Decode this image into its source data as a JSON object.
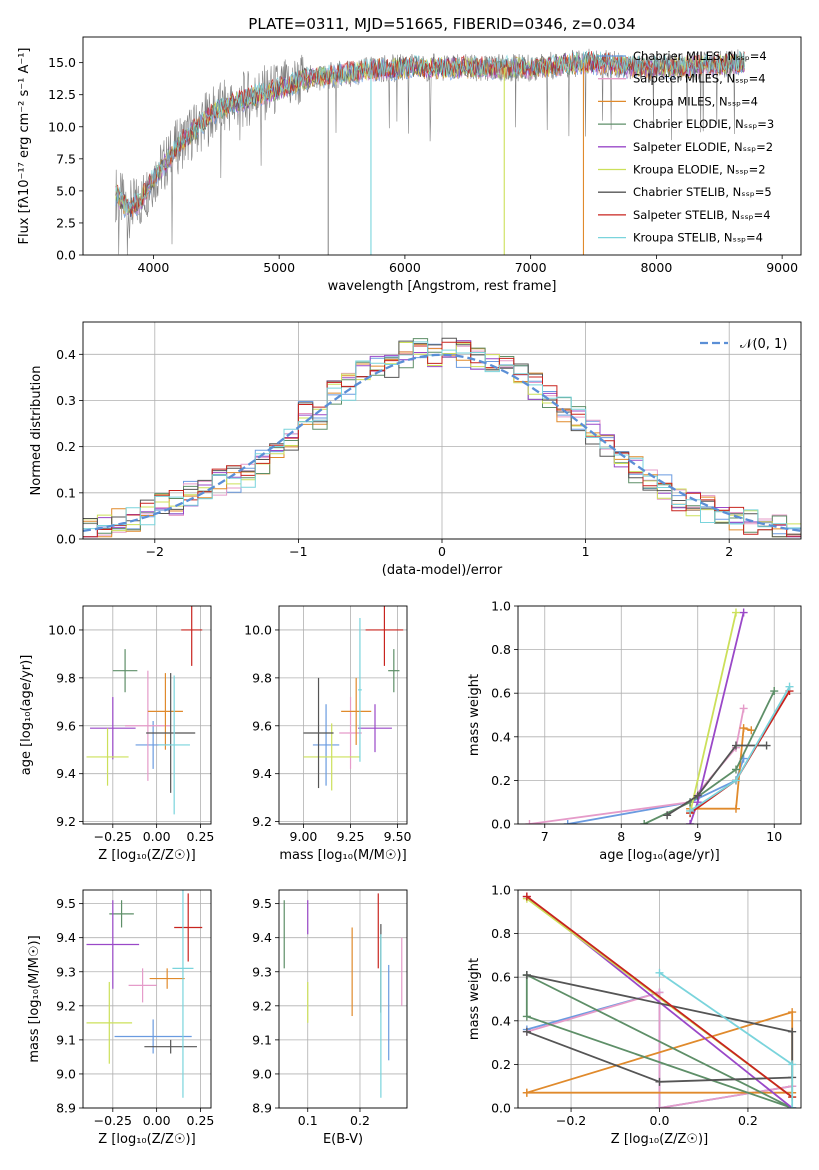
{
  "title": "PLATE=0311, MJD=51665, FIBERID=0346, z=0.034",
  "colors": {
    "series": [
      "#6a9be0",
      "#e59bc9",
      "#e08a2c",
      "#5e8f68",
      "#9a48c8",
      "#cce05a",
      "#555555",
      "#c8241f",
      "#7ad4dc"
    ],
    "spectrum_data": "#808080",
    "normal_curve": "#5b8fd6"
  },
  "chart_data": [
    {
      "type": "line",
      "panel": "spectrum",
      "xlabel": "wavelength [Angstrom, rest frame]",
      "ylabel": "Flux [fλ10⁻¹⁷ erg cm⁻² s⁻¹ A⁻¹]",
      "xlim": [
        3440,
        9150
      ],
      "ylim": [
        0,
        17
      ],
      "xticks": [
        "4000",
        "5000",
        "6000",
        "7000",
        "8000",
        "9000"
      ],
      "yticks": [
        "0.0",
        "2.5",
        "5.0",
        "7.5",
        "10.0",
        "12.5",
        "15.0"
      ],
      "legend": [
        "Chabrier MILES, Nₛₛₚ=4",
        "Salpeter MILES, Nₛₛₚ=4",
        "Kroupa MILES, Nₛₛₚ=4",
        "Chabrier ELODIE, Nₛₛₚ=3",
        "Salpeter ELODIE, Nₛₛₚ=2",
        "Kroupa ELODIE, Nₛₛₚ=2",
        "Chabrier STELIB, Nₛₛₚ=5",
        "Salpeter STELIB, Nₛₛₚ=4",
        "Kroupa STELIB, Nₛₛₚ=4"
      ],
      "legend_location": "right",
      "continuum": [
        [
          3700,
          4.8
        ],
        [
          3800,
          3.5
        ],
        [
          3900,
          4.2
        ],
        [
          4000,
          6.0
        ],
        [
          4100,
          7.2
        ],
        [
          4200,
          8.6
        ],
        [
          4300,
          9.5
        ],
        [
          4400,
          10.4
        ],
        [
          4500,
          11.2
        ],
        [
          4600,
          11.6
        ],
        [
          4800,
          12.4
        ],
        [
          5000,
          12.9
        ],
        [
          5200,
          13.7
        ],
        [
          5500,
          14.1
        ],
        [
          5800,
          14.5
        ],
        [
          6000,
          14.6
        ],
        [
          6300,
          14.6
        ],
        [
          6600,
          14.6
        ],
        [
          7000,
          14.6
        ],
        [
          7300,
          14.9
        ],
        [
          7500,
          15.0
        ],
        [
          7800,
          14.7
        ],
        [
          8000,
          14.6
        ],
        [
          8300,
          14.7
        ],
        [
          8600,
          14.9
        ],
        [
          8700,
          15.0
        ]
      ],
      "model_dropouts": [
        [
          5730,
          0,
          "#7ad4dc"
        ],
        [
          6790,
          0,
          "#cce05a"
        ],
        [
          7420,
          0,
          "#e08a2c"
        ]
      ]
    },
    {
      "type": "line",
      "panel": "residual-histogram",
      "xlabel": "(data-model)/error",
      "ylabel": "Normed distribution",
      "xlim": [
        -2.5,
        2.5
      ],
      "ylim": [
        0,
        0.47
      ],
      "xticks": [
        "−2",
        "−1",
        "0",
        "1",
        "2"
      ],
      "yticks": [
        "0.0",
        "0.1",
        "0.2",
        "0.3",
        "0.4"
      ],
      "legend": [
        "𝒩(0, 1)"
      ],
      "legend_location": "top-right",
      "bins_center": [
        -2.45,
        -2.35,
        -2.25,
        -2.15,
        -2.05,
        -1.95,
        -1.85,
        -1.75,
        -1.65,
        -1.55,
        -1.45,
        -1.35,
        -1.25,
        -1.15,
        -1.05,
        -0.95,
        -0.85,
        -0.75,
        -0.65,
        -0.55,
        -0.45,
        -0.35,
        -0.25,
        -0.15,
        -0.05,
        0.05,
        0.15,
        0.25,
        0.35,
        0.45,
        0.55,
        0.65,
        0.75,
        0.85,
        0.95,
        1.05,
        1.15,
        1.25,
        1.35,
        1.45,
        1.55,
        1.65,
        1.75,
        1.85,
        1.95,
        2.05,
        2.15,
        2.25,
        2.35,
        2.45
      ],
      "reference_histogram": [
        0.02,
        0.03,
        0.04,
        0.045,
        0.055,
        0.07,
        0.08,
        0.095,
        0.11,
        0.125,
        0.13,
        0.14,
        0.17,
        0.19,
        0.22,
        0.27,
        0.26,
        0.32,
        0.33,
        0.36,
        0.37,
        0.38,
        0.4,
        0.41,
        0.4,
        0.41,
        0.4,
        0.39,
        0.38,
        0.37,
        0.35,
        0.33,
        0.31,
        0.28,
        0.26,
        0.23,
        0.2,
        0.17,
        0.15,
        0.13,
        0.11,
        0.09,
        0.08,
        0.065,
        0.055,
        0.045,
        0.04,
        0.03,
        0.025,
        0.02
      ]
    },
    {
      "type": "scatter",
      "panel": "age-vs-metallicity",
      "xlabel": "Z [log₁₀(Z/Z☉)]",
      "ylabel": "age  [log₁₀(age/yr)]",
      "xlim": [
        -0.42,
        0.31
      ],
      "ylim": [
        9.19,
        10.1
      ],
      "xticks": [
        "−0.25",
        "0.00",
        "0.25"
      ],
      "yticks": [
        "9.2",
        "9.4",
        "9.6",
        "9.8",
        "10.0"
      ],
      "points": [
        {
          "x": -0.02,
          "y": 9.52,
          "xerr": 0.1,
          "yerr": 0.1,
          "series": 0
        },
        {
          "x": -0.05,
          "y": 9.6,
          "xerr": 0.13,
          "yerr": 0.23,
          "series": 1
        },
        {
          "x": 0.05,
          "y": 9.66,
          "xerr": 0.1,
          "yerr": 0.16,
          "series": 2
        },
        {
          "x": -0.18,
          "y": 9.83,
          "xerr": 0.07,
          "yerr": 0.09,
          "series": 3
        },
        {
          "x": -0.25,
          "y": 9.59,
          "xerr": 0.13,
          "yerr": 0.13,
          "series": 4
        },
        {
          "x": -0.28,
          "y": 9.47,
          "xerr": 0.12,
          "yerr": 0.12,
          "series": 5
        },
        {
          "x": 0.08,
          "y": 9.57,
          "xerr": 0.14,
          "yerr": 0.25,
          "series": 6
        },
        {
          "x": 0.2,
          "y": 10.0,
          "xerr": 0.06,
          "yerr": 0.15,
          "series": 7
        },
        {
          "x": 0.1,
          "y": 9.52,
          "xerr": 0.09,
          "yerr": 0.29,
          "series": 8
        }
      ]
    },
    {
      "type": "scatter",
      "panel": "age-vs-mass",
      "xlabel": "mass [log₁₀(M/M☉)]",
      "ylabel": "",
      "xlim": [
        8.87,
        9.55
      ],
      "ylim": [
        9.19,
        10.1
      ],
      "xticks": [
        "9.00",
        "9.25",
        "9.50"
      ],
      "yticks": [
        "9.2",
        "9.4",
        "9.6",
        "9.8",
        "10.0"
      ],
      "points": [
        {
          "x": 9.12,
          "y": 9.52,
          "xerr": 0.07,
          "yerr": 0.17,
          "series": 0
        },
        {
          "x": 9.25,
          "y": 9.57,
          "xerr": 0.06,
          "yerr": 0.15,
          "series": 1
        },
        {
          "x": 9.28,
          "y": 9.66,
          "xerr": 0.08,
          "yerr": 0.14,
          "series": 2
        },
        {
          "x": 9.48,
          "y": 9.83,
          "xerr": 0.03,
          "yerr": 0.09,
          "series": 3
        },
        {
          "x": 9.38,
          "y": 9.59,
          "xerr": 0.09,
          "yerr": 0.1,
          "series": 4
        },
        {
          "x": 9.15,
          "y": 9.47,
          "xerr": 0.15,
          "yerr": 0.14,
          "series": 5
        },
        {
          "x": 9.08,
          "y": 9.57,
          "xerr": 0.08,
          "yerr": 0.23,
          "series": 6
        },
        {
          "x": 9.43,
          "y": 10.0,
          "xerr": 0.1,
          "yerr": 0.15,
          "series": 7
        },
        {
          "x": 9.3,
          "y": 9.75,
          "xerr": 0.01,
          "yerr": 0.3,
          "series": 8
        }
      ]
    },
    {
      "type": "line",
      "panel": "mass-weight-vs-age",
      "xlabel": "age  [log₁₀(age/yr)]",
      "ylabel": "mass weight",
      "xlim": [
        6.65,
        10.35
      ],
      "ylim": [
        0,
        1
      ],
      "xticks": [
        "7",
        "8",
        "9",
        "10"
      ],
      "yticks": [
        "0.0",
        "0.2",
        "0.4",
        "0.6",
        "0.8",
        "1.0"
      ],
      "series": [
        {
          "series": 0,
          "points": [
            [
              7.3,
              0.0
            ],
            [
              8.9,
              0.1
            ],
            [
              9.5,
              0.2
            ],
            [
              9.6,
              0.3
            ]
          ]
        },
        {
          "series": 1,
          "points": [
            [
              6.8,
              0.0
            ],
            [
              8.9,
              0.1
            ],
            [
              9.5,
              0.35
            ],
            [
              9.6,
              0.53
            ]
          ]
        },
        {
          "series": 2,
          "points": [
            [
              8.9,
              0.07
            ],
            [
              9.5,
              0.07
            ],
            [
              9.6,
              0.44
            ],
            [
              9.7,
              0.43
            ]
          ]
        },
        {
          "series": 3,
          "points": [
            [
              8.3,
              0.0
            ],
            [
              8.9,
              0.1
            ],
            [
              9.5,
              0.25
            ],
            [
              10.0,
              0.61
            ]
          ]
        },
        {
          "series": 4,
          "points": [
            [
              8.9,
              0.0
            ],
            [
              9.0,
              0.1
            ],
            [
              9.6,
              0.97
            ]
          ]
        },
        {
          "series": 5,
          "points": [
            [
              8.9,
              0.05
            ],
            [
              9.5,
              0.97
            ]
          ]
        },
        {
          "series": 6,
          "points": [
            [
              8.6,
              0.04
            ],
            [
              9.0,
              0.13
            ],
            [
              9.5,
              0.36
            ],
            [
              9.9,
              0.36
            ]
          ]
        },
        {
          "series": 7,
          "points": [
            [
              8.9,
              0.05
            ],
            [
              9.5,
              0.2
            ],
            [
              10.2,
              0.61
            ]
          ]
        },
        {
          "series": 8,
          "points": [
            [
              8.9,
              0.06
            ],
            [
              9.5,
              0.2
            ],
            [
              10.2,
              0.63
            ]
          ]
        }
      ]
    },
    {
      "type": "scatter",
      "panel": "mass-vs-metallicity",
      "xlabel": "Z [log₁₀(Z/Z☉)]",
      "ylabel": "mass [log₁₀(M/M☉)]",
      "xlim": [
        -0.42,
        0.31
      ],
      "ylim": [
        8.9,
        9.54
      ],
      "xticks": [
        "−0.25",
        "0.00",
        "0.25"
      ],
      "yticks": [
        "8.9",
        "9.0",
        "9.1",
        "9.2",
        "9.3",
        "9.4",
        "9.5"
      ],
      "points": [
        {
          "x": -0.02,
          "y": 9.11,
          "xerr": 0.22,
          "yerr": 0.05,
          "series": 0
        },
        {
          "x": -0.08,
          "y": 9.26,
          "xerr": 0.08,
          "yerr": 0.05,
          "series": 1
        },
        {
          "x": 0.06,
          "y": 9.28,
          "xerr": 0.1,
          "yerr": 0.03,
          "series": 2
        },
        {
          "x": -0.2,
          "y": 9.47,
          "xerr": 0.07,
          "yerr": 0.04,
          "series": 3
        },
        {
          "x": -0.25,
          "y": 9.38,
          "xerr": 0.15,
          "yerr": 0.13,
          "series": 4
        },
        {
          "x": -0.27,
          "y": 9.15,
          "xerr": 0.13,
          "yerr": 0.12,
          "series": 5
        },
        {
          "x": 0.08,
          "y": 9.08,
          "xerr": 0.15,
          "yerr": 0.02,
          "series": 6
        },
        {
          "x": 0.18,
          "y": 9.43,
          "xerr": 0.08,
          "yerr": 0.1,
          "series": 7
        },
        {
          "x": 0.15,
          "y": 9.31,
          "xerr": 0.06,
          "yerr": 0.38,
          "series": 8
        }
      ]
    },
    {
      "type": "scatter",
      "panel": "mass-vs-extinction",
      "xlabel": "E(B-V)",
      "ylabel": "",
      "xlim": [
        0.045,
        0.29
      ],
      "ylim": [
        8.9,
        9.54
      ],
      "xticks": [
        "0.1",
        "0.2"
      ],
      "yticks": [
        "8.9",
        "9.0",
        "9.1",
        "9.2",
        "9.3",
        "9.4",
        "9.5"
      ],
      "points": [
        {
          "x": 0.255,
          "y": 9.18,
          "yerr": 0.14,
          "series": 0
        },
        {
          "x": 0.28,
          "y": 9.3,
          "yerr": 0.1,
          "series": 1
        },
        {
          "x": 0.185,
          "y": 9.3,
          "yerr": 0.13,
          "series": 2
        },
        {
          "x": 0.055,
          "y": 9.41,
          "yerr": 0.1,
          "series": 3
        },
        {
          "x": 0.1,
          "y": 9.46,
          "yerr": 0.05,
          "series": 4
        },
        {
          "x": 0.1,
          "y": 9.21,
          "yerr": 0.06,
          "series": 5
        },
        {
          "x": 0.24,
          "y": 9.31,
          "yerr": 0.13,
          "series": 6
        },
        {
          "x": 0.235,
          "y": 9.42,
          "yerr": 0.11,
          "series": 7
        },
        {
          "x": 0.24,
          "y": 9.17,
          "yerr": 0.24,
          "series": 8
        }
      ]
    },
    {
      "type": "line",
      "panel": "mass-weight-vs-metallicity",
      "xlabel": "Z [log₁₀(Z/Z☉)]",
      "ylabel": "mass weight",
      "xlim": [
        -0.32,
        0.32
      ],
      "ylim": [
        0,
        1
      ],
      "xticks": [
        "−0.2",
        "0.0",
        "0.2"
      ],
      "yticks": [
        "0.0",
        "0.2",
        "0.4",
        "0.6",
        "0.8",
        "1.0"
      ],
      "series": [
        {
          "series": 0,
          "points": [
            [
              -0.3,
              0.36
            ],
            [
              0.0,
              0.53
            ],
            [
              0.0,
              0.0
            ],
            [
              0.3,
              0.1
            ]
          ]
        },
        {
          "series": 1,
          "points": [
            [
              -0.3,
              0.35
            ],
            [
              0.0,
              0.53
            ],
            [
              0.0,
              0.0
            ],
            [
              0.3,
              0.1
            ]
          ]
        },
        {
          "series": 2,
          "points": [
            [
              -0.3,
              0.07
            ],
            [
              0.3,
              0.07
            ],
            [
              0.3,
              0.44
            ],
            [
              -0.3,
              0.07
            ]
          ]
        },
        {
          "series": 3,
          "points": [
            [
              -0.3,
              0.61
            ],
            [
              0.3,
              0.0
            ],
            [
              -0.3,
              0.42
            ],
            [
              -0.3,
              0.61
            ]
          ]
        },
        {
          "series": 4,
          "points": [
            [
              -0.3,
              0.97
            ],
            [
              0.3,
              0.0
            ]
          ]
        },
        {
          "series": 5,
          "points": [
            [
              -0.3,
              0.96
            ],
            [
              0.3,
              0.05
            ]
          ]
        },
        {
          "series": 6,
          "points": [
            [
              -0.3,
              0.35
            ],
            [
              0.0,
              0.12
            ],
            [
              0.3,
              0.14
            ],
            [
              0.3,
              0.35
            ],
            [
              -0.3,
              0.61
            ]
          ]
        },
        {
          "series": 7,
          "points": [
            [
              -0.3,
              0.97
            ],
            [
              0.3,
              0.05
            ]
          ]
        },
        {
          "series": 8,
          "points": [
            [
              0.0,
              0.62
            ],
            [
              0.3,
              0.2
            ],
            [
              0.3,
              0.0
            ]
          ]
        }
      ]
    }
  ]
}
